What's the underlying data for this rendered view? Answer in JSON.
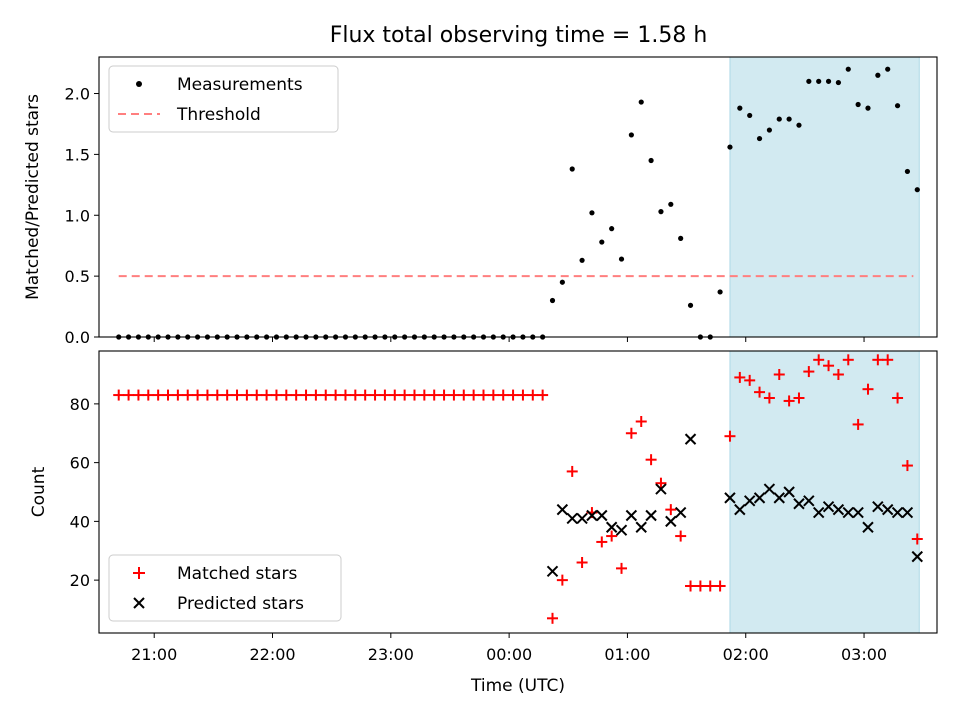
{
  "figure": {
    "title": "Flux total observing time = 1.58 h"
  },
  "colors": {
    "shade": "#add8e6",
    "threshold": "#ff7f7f",
    "measurement": "#000000",
    "matched": "#ff0000",
    "predicted": "#000000"
  },
  "chart_data": [
    {
      "type": "scatter",
      "panel": "top",
      "title": "Flux total observing time = 1.58 h",
      "xlabel": "",
      "ylabel": "Matched/Predicted stars",
      "xlim": [
        "20:32",
        "03:37"
      ],
      "ylim": [
        0,
        2.3
      ],
      "yticks": [
        0.0,
        0.5,
        1.0,
        1.5,
        2.0
      ],
      "ytick_labels": [
        "0.0",
        "0.5",
        "1.0",
        "1.5",
        "2.0"
      ],
      "legend_position": "top-left",
      "shaded_interval": [
        "01:52",
        "03:28"
      ],
      "threshold": {
        "name": "Threshold",
        "y": 0.5,
        "x_start": "20:42",
        "x_end": "03:25",
        "style": "dashed"
      },
      "series": [
        {
          "name": "Measurements",
          "marker": "dot",
          "x": [
            "20:42",
            "20:47",
            "20:52",
            "20:57",
            "21:02",
            "21:07",
            "21:12",
            "21:17",
            "21:22",
            "21:27",
            "21:32",
            "21:37",
            "21:42",
            "21:47",
            "21:52",
            "21:57",
            "22:02",
            "22:07",
            "22:12",
            "22:17",
            "22:22",
            "22:27",
            "22:32",
            "22:37",
            "22:42",
            "22:47",
            "22:52",
            "22:57",
            "23:02",
            "23:07",
            "23:12",
            "23:17",
            "23:22",
            "23:27",
            "23:32",
            "23:37",
            "23:42",
            "23:47",
            "23:52",
            "23:57",
            "00:02",
            "00:07",
            "00:12",
            "00:17",
            "00:22",
            "00:27",
            "00:32",
            "00:37",
            "00:42",
            "00:47",
            "00:52",
            "00:57",
            "01:02",
            "01:07",
            "01:12",
            "01:17",
            "01:22",
            "01:27",
            "01:32",
            "01:37",
            "01:42",
            "01:47",
            "01:52",
            "01:57",
            "02:02",
            "02:07",
            "02:12",
            "02:17",
            "02:22",
            "02:27",
            "02:32",
            "02:37",
            "02:42",
            "02:47",
            "02:52",
            "02:57",
            "03:02",
            "03:07",
            "03:12",
            "03:17",
            "03:22",
            "03:27"
          ],
          "y": [
            0,
            0,
            0,
            0,
            0,
            0,
            0,
            0,
            0,
            0,
            0,
            0,
            0,
            0,
            0,
            0,
            0,
            0,
            0,
            0,
            0,
            0,
            0,
            0,
            0,
            0,
            0,
            0,
            0,
            0,
            0,
            0,
            0,
            0,
            0,
            0,
            0,
            0,
            0,
            0,
            0,
            0,
            0,
            0,
            0.3,
            0.45,
            1.38,
            0.63,
            1.02,
            0.78,
            0.89,
            0.64,
            1.66,
            1.93,
            1.45,
            1.03,
            1.09,
            0.81,
            0.26,
            0,
            0,
            0.37,
            1.56,
            1.88,
            1.82,
            1.63,
            1.7,
            1.79,
            1.79,
            1.74,
            2.1,
            2.1,
            2.1,
            2.09,
            2.2,
            1.91,
            1.88,
            2.15,
            2.2,
            1.9,
            1.36,
            1.21
          ]
        }
      ]
    },
    {
      "type": "scatter",
      "panel": "bottom",
      "xlabel": "Time (UTC)",
      "ylabel": "Count",
      "xlim": [
        "20:32",
        "03:37"
      ],
      "ylim": [
        2,
        98
      ],
      "xticks": [
        "21:00",
        "22:00",
        "23:00",
        "00:00",
        "01:00",
        "02:00",
        "03:00"
      ],
      "yticks": [
        20,
        40,
        60,
        80
      ],
      "ytick_labels": [
        "20",
        "40",
        "60",
        "80"
      ],
      "legend_position": "bottom-left",
      "shaded_interval": [
        "01:52",
        "03:28"
      ],
      "series": [
        {
          "name": "Matched stars",
          "marker": "plus",
          "x": [
            "20:42",
            "20:47",
            "20:52",
            "20:57",
            "21:02",
            "21:07",
            "21:12",
            "21:17",
            "21:22",
            "21:27",
            "21:32",
            "21:37",
            "21:42",
            "21:47",
            "21:52",
            "21:57",
            "22:02",
            "22:07",
            "22:12",
            "22:17",
            "22:22",
            "22:27",
            "22:32",
            "22:37",
            "22:42",
            "22:47",
            "22:52",
            "22:57",
            "23:02",
            "23:07",
            "23:12",
            "23:17",
            "23:22",
            "23:27",
            "23:32",
            "23:37",
            "23:42",
            "23:47",
            "23:52",
            "23:57",
            "00:02",
            "00:07",
            "00:12",
            "00:17",
            "00:22",
            "00:27",
            "00:32",
            "00:37",
            "00:42",
            "00:47",
            "00:52",
            "00:57",
            "01:02",
            "01:07",
            "01:12",
            "01:17",
            "01:22",
            "01:27",
            "01:32",
            "01:37",
            "01:42",
            "01:47",
            "01:52",
            "01:57",
            "02:02",
            "02:07",
            "02:12",
            "02:17",
            "02:22",
            "02:27",
            "02:32",
            "02:37",
            "02:42",
            "02:47",
            "02:52",
            "02:57",
            "03:02",
            "03:07",
            "03:12",
            "03:17",
            "03:22",
            "03:27"
          ],
          "y": [
            83,
            83,
            83,
            83,
            83,
            83,
            83,
            83,
            83,
            83,
            83,
            83,
            83,
            83,
            83,
            83,
            83,
            83,
            83,
            83,
            83,
            83,
            83,
            83,
            83,
            83,
            83,
            83,
            83,
            83,
            83,
            83,
            83,
            83,
            83,
            83,
            83,
            83,
            83,
            83,
            83,
            83,
            83,
            83,
            7,
            20,
            57,
            26,
            43,
            33,
            35,
            24,
            70,
            74,
            61,
            53,
            44,
            35,
            18,
            18,
            18,
            18,
            69,
            89,
            88,
            84,
            82,
            90,
            81,
            82,
            91,
            95,
            93,
            90,
            95,
            73,
            85,
            95,
            95,
            82,
            59,
            34
          ]
        },
        {
          "name": "Predicted stars",
          "marker": "x",
          "x": [
            "00:22",
            "00:27",
            "00:32",
            "00:37",
            "00:42",
            "00:47",
            "00:52",
            "00:57",
            "01:02",
            "01:07",
            "01:12",
            "01:17",
            "01:22",
            "01:27",
            "01:32",
            "01:52",
            "01:57",
            "02:02",
            "02:07",
            "02:12",
            "02:17",
            "02:22",
            "02:27",
            "02:32",
            "02:37",
            "02:42",
            "02:47",
            "02:52",
            "02:57",
            "03:02",
            "03:07",
            "03:12",
            "03:17",
            "03:22",
            "03:27"
          ],
          "y": [
            23,
            44,
            41,
            41,
            42,
            42,
            38,
            37,
            42,
            38,
            42,
            51,
            40,
            43,
            68,
            48,
            44,
            47,
            48,
            51,
            48,
            50,
            46,
            47,
            43,
            45,
            44,
            43,
            43,
            38,
            45,
            44,
            43,
            43,
            28
          ]
        }
      ]
    }
  ]
}
